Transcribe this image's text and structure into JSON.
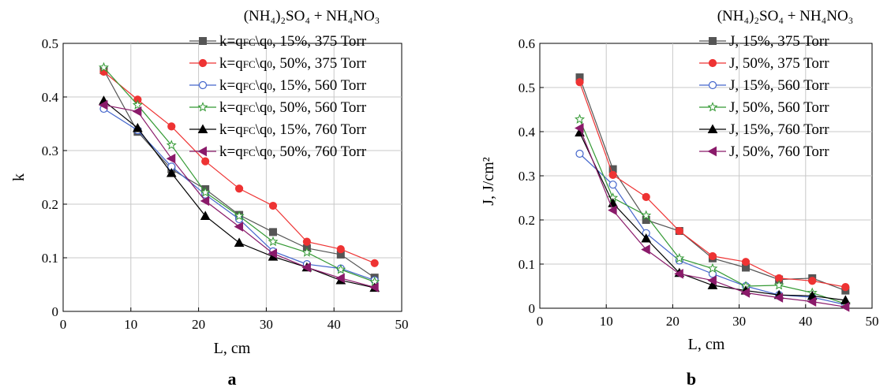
{
  "chart_data": [
    {
      "type": "line",
      "panel_label": "a",
      "legend_title": "(NH₄)₂SO₄ + NH₄NO₃",
      "xlabel": "L, cm",
      "ylabel": "k",
      "xlim": [
        0,
        50
      ],
      "ylim": [
        0,
        0.5
      ],
      "xticks": [
        "0",
        "10",
        "20",
        "30",
        "40",
        "50"
      ],
      "yticks": [
        "0",
        "0.1",
        "0.2",
        "0.3",
        "0.4",
        "0.5"
      ],
      "grid": true,
      "legend_position": "top-right",
      "x": [
        6,
        11,
        16,
        21,
        26,
        31,
        36,
        41,
        46
      ],
      "series": [
        {
          "name": "k=qFC\\q0, 15%, 375 Torr",
          "label_main": "k=q",
          "label_sub1": "FC",
          "label_mid": "\\q",
          "label_sub2": "0",
          "label_rest": ", 15%, 375 Torr",
          "color": "#555555",
          "marker": "square",
          "filled": true,
          "values": [
            0.45,
            0.335,
            0.265,
            0.228,
            0.18,
            0.148,
            0.118,
            0.106,
            0.063
          ]
        },
        {
          "name": "k=qFC\\q0, 50%, 375 Torr",
          "label_main": "k=q",
          "label_sub1": "FC",
          "label_mid": "\\q",
          "label_sub2": "0",
          "label_rest": ", 50%, 375 Torr",
          "color": "#ee3333",
          "marker": "circle",
          "filled": true,
          "values": [
            0.447,
            0.395,
            0.345,
            0.28,
            0.229,
            0.197,
            0.13,
            0.116,
            0.09
          ]
        },
        {
          "name": "k=qFC\\q0, 15%, 560 Torr",
          "label_main": "k=q",
          "label_sub1": "FC",
          "label_mid": "\\q",
          "label_sub2": "0",
          "label_rest": ", 15%, 560 Torr",
          "color": "#4466cc",
          "marker": "circle",
          "filled": false,
          "values": [
            0.378,
            0.338,
            0.27,
            0.218,
            0.172,
            0.112,
            0.088,
            0.08,
            0.058
          ]
        },
        {
          "name": "k=qFC\\q0, 50%, 560 Torr",
          "label_main": "k=q",
          "label_sub1": "FC",
          "label_mid": "\\q",
          "label_sub2": "0",
          "label_rest": ", 50%, 560 Torr",
          "color": "#339933",
          "marker": "star",
          "filled": false,
          "values": [
            0.455,
            0.385,
            0.31,
            0.222,
            0.178,
            0.13,
            0.11,
            0.078,
            0.055
          ]
        },
        {
          "name": "k=qFC\\q0, 15%, 760 Torr",
          "label_main": "k=q",
          "label_sub1": "FC",
          "label_mid": "\\q",
          "label_sub2": "0",
          "label_rest": ", 15%, 760 Torr",
          "color": "#000000",
          "marker": "triangle-up",
          "filled": true,
          "values": [
            0.393,
            0.342,
            0.258,
            0.178,
            0.128,
            0.102,
            0.082,
            0.058,
            0.044
          ]
        },
        {
          "name": "k=qFC\\q0, 50%, 760 Torr",
          "label_main": "k=q",
          "label_sub1": "FC",
          "label_mid": "\\q",
          "label_sub2": "0",
          "label_rest": ", 50%, 760 Torr",
          "color": "#8a1a6a",
          "marker": "triangle-left",
          "filled": true,
          "values": [
            0.385,
            0.373,
            0.285,
            0.206,
            0.158,
            0.108,
            0.082,
            0.062,
            0.045
          ]
        }
      ]
    },
    {
      "type": "line",
      "panel_label": "b",
      "legend_title": "(NH₄)₂SO₄ + NH₄NO₃",
      "xlabel": "L, cm",
      "ylabel": "J, J/cm²",
      "xlim": [
        0,
        50
      ],
      "ylim": [
        0,
        0.6
      ],
      "xticks": [
        "0",
        "10",
        "20",
        "30",
        "40",
        "50"
      ],
      "yticks": [
        "0",
        "0.1",
        "0.2",
        "0.3",
        "0.4",
        "0.5",
        "0.6"
      ],
      "grid": true,
      "legend_position": "top-right",
      "x": [
        6,
        11,
        16,
        21,
        26,
        31,
        36,
        41,
        46
      ],
      "series": [
        {
          "name": "J, 15%, 375 Torr",
          "color": "#555555",
          "marker": "square",
          "filled": true,
          "values": [
            0.523,
            0.315,
            0.2,
            0.175,
            0.113,
            0.092,
            0.065,
            0.068,
            0.04
          ]
        },
        {
          "name": "J, 50%, 375 Torr",
          "color": "#ee3333",
          "marker": "circle",
          "filled": true,
          "values": [
            0.512,
            0.302,
            0.252,
            0.175,
            0.118,
            0.105,
            0.068,
            0.062,
            0.048
          ]
        },
        {
          "name": "J, 15%, 560 Torr",
          "color": "#4466cc",
          "marker": "circle",
          "filled": false,
          "values": [
            0.35,
            0.28,
            0.17,
            0.108,
            0.078,
            0.05,
            0.03,
            0.025,
            0.008
          ]
        },
        {
          "name": "J, 50%, 560 Torr",
          "color": "#339933",
          "marker": "star",
          "filled": false,
          "values": [
            0.428,
            0.25,
            0.21,
            0.113,
            0.09,
            0.05,
            0.052,
            0.035,
            0.01
          ]
        },
        {
          "name": "J, 15%, 760 Torr",
          "color": "#000000",
          "marker": "triangle-up",
          "filled": true,
          "values": [
            0.398,
            0.238,
            0.158,
            0.08,
            0.052,
            0.04,
            0.03,
            0.028,
            0.018
          ]
        },
        {
          "name": "J, 50%, 760 Torr",
          "color": "#8a1a6a",
          "marker": "triangle-left",
          "filled": true,
          "values": [
            0.408,
            0.222,
            0.133,
            0.078,
            0.063,
            0.035,
            0.024,
            0.015,
            0.003
          ]
        }
      ]
    }
  ]
}
